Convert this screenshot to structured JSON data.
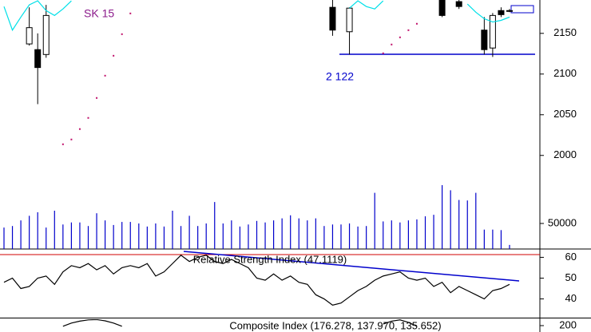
{
  "chart_data": [
    {
      "type": "candlestick",
      "open": [
        null,
        null,
        null,
        2137,
        2130,
        2124,
        null,
        null,
        null,
        null,
        null,
        null,
        null,
        null,
        null,
        null,
        null,
        null,
        null,
        null,
        null,
        null,
        null,
        null,
        null,
        null,
        null,
        null,
        null,
        null,
        null,
        null,
        null,
        null,
        null,
        null,
        null,
        null,
        null,
        2182,
        null,
        2152,
        null,
        null,
        null,
        null,
        null,
        null,
        null,
        null,
        null,
        null,
        2191,
        null,
        2189,
        null,
        null,
        2154,
        2132,
        2178,
        2178
      ],
      "high": [
        null,
        null,
        null,
        2182,
        2150,
        2185,
        null,
        null,
        null,
        null,
        null,
        null,
        null,
        null,
        null,
        null,
        null,
        null,
        null,
        null,
        null,
        null,
        null,
        null,
        null,
        null,
        null,
        null,
        null,
        null,
        null,
        null,
        null,
        null,
        null,
        null,
        null,
        null,
        null,
        2195,
        null,
        2182,
        null,
        null,
        null,
        null,
        null,
        null,
        null,
        null,
        null,
        null,
        2195,
        null,
        2195,
        null,
        null,
        2170,
        2175,
        2182,
        2180
      ],
      "low": [
        null,
        null,
        null,
        2135,
        2063,
        2120,
        null,
        null,
        null,
        null,
        null,
        null,
        null,
        null,
        null,
        null,
        null,
        null,
        null,
        null,
        null,
        null,
        null,
        null,
        null,
        null,
        null,
        null,
        null,
        null,
        null,
        null,
        null,
        null,
        null,
        null,
        null,
        null,
        null,
        2147,
        null,
        2124,
        null,
        null,
        null,
        null,
        null,
        null,
        null,
        null,
        null,
        null,
        2170,
        null,
        2180,
        null,
        null,
        2124,
        2121,
        2170,
        2176
      ],
      "close": [
        null,
        null,
        null,
        2157,
        2108,
        2172,
        null,
        null,
        null,
        null,
        null,
        null,
        null,
        null,
        null,
        null,
        null,
        null,
        null,
        null,
        null,
        null,
        null,
        null,
        null,
        null,
        null,
        null,
        null,
        null,
        null,
        null,
        null,
        null,
        null,
        null,
        null,
        null,
        null,
        2154,
        null,
        2181,
        null,
        null,
        null,
        null,
        null,
        null,
        null,
        null,
        null,
        null,
        2172,
        null,
        2183,
        null,
        null,
        2130,
        2172,
        2173,
        2177
      ],
      "series": [
        {
          "style": "line",
          "color": "#00e0e8",
          "values": [
            2183,
            2154,
            2170,
            2185,
            2190,
            2178,
            2172,
            2180,
            2190,
            null,
            null,
            null,
            null,
            null,
            null,
            null,
            null,
            null,
            null,
            null,
            null,
            null,
            null,
            null,
            null,
            null,
            null,
            null,
            null,
            null,
            null,
            null,
            null,
            null,
            null,
            null,
            null,
            null,
            null,
            null,
            null,
            2181,
            2190,
            2183,
            2180,
            2190,
            null,
            null,
            null,
            null,
            null,
            null,
            null,
            null,
            null,
            2186,
            2176,
            2168,
            2164,
            2166,
            2170
          ]
        },
        {
          "style": "dots",
          "color": "#c0106a",
          "values": [
            null,
            null,
            null,
            null,
            null,
            null,
            null,
            2013.7,
            2019.6,
            2032.4,
            2046.1,
            2070.6,
            2098,
            2122.5,
            2149,
            2174.5,
            null,
            null,
            null,
            null,
            null,
            null,
            null,
            null,
            null,
            null,
            null,
            null,
            null,
            null,
            null,
            null,
            null,
            null,
            null,
            null,
            null,
            null,
            null,
            null,
            null,
            null,
            null,
            null,
            null,
            2125.5,
            2136.3,
            2145.1,
            2153.9,
            2161.8,
            null,
            null,
            null,
            null,
            null,
            null,
            null,
            null,
            null,
            null,
            null
          ]
        }
      ],
      "annotations": [
        "SK 15",
        "2 122"
      ],
      "ylim": [
        1885,
        2191
      ],
      "yticks": [
        2000,
        2050,
        2100,
        2150
      ]
    },
    {
      "type": "bar",
      "color": "#0000cc",
      "values": [
        42000,
        45000,
        56000,
        65000,
        72000,
        42000,
        75000,
        48000,
        52000,
        52000,
        45000,
        70000,
        56000,
        47000,
        53000,
        53000,
        50000,
        44000,
        50000,
        44000,
        75000,
        45000,
        65000,
        45000,
        50000,
        92000,
        50000,
        56000,
        44000,
        48000,
        55000,
        52000,
        56000,
        60000,
        66000,
        60000,
        56000,
        60000,
        45000,
        48000,
        48000,
        50000,
        44000,
        45000,
        110000,
        54000,
        56000,
        52000,
        56000,
        58000,
        64000,
        67000,
        125000,
        115000,
        96000,
        95000,
        110000,
        38000,
        38000,
        37000,
        8000
      ],
      "ylim": [
        0,
        487500
      ],
      "yticks": [
        50000
      ]
    },
    {
      "type": "line",
      "title": "Relative Strength Index (47.1119)",
      "color": "#000000",
      "values": [
        48,
        50,
        45,
        46,
        50,
        51,
        47,
        53,
        56,
        55,
        57,
        54,
        56,
        52,
        55,
        56,
        55,
        57,
        51,
        53,
        57,
        61,
        58,
        60,
        61,
        58,
        57,
        59,
        57,
        55,
        50,
        49,
        52,
        49,
        51,
        48,
        47,
        42,
        40,
        37,
        38,
        41,
        44,
        46,
        49,
        51,
        52,
        53,
        50,
        49,
        50,
        46,
        48,
        43,
        46,
        44,
        42,
        40,
        44,
        45,
        47
      ],
      "ylim": [
        31,
        64
      ],
      "yticks": [
        60,
        50,
        40
      ]
    },
    {
      "type": "line",
      "title": "Composite Index (176.278, 137.970, 135.652)",
      "color": "#000000",
      "values": [
        null,
        null,
        null,
        null,
        null,
        null,
        null,
        198,
        208,
        214,
        218,
        219,
        215,
        208,
        198,
        null,
        null,
        null,
        null,
        null,
        null,
        null,
        null,
        null,
        null,
        null,
        null,
        null,
        null,
        null,
        null,
        null,
        null,
        null,
        null,
        null,
        null,
        null,
        null,
        null,
        null,
        null,
        null,
        null,
        null,
        205,
        214,
        218,
        210,
        198,
        null,
        null,
        null,
        null,
        null,
        null,
        null,
        null,
        null,
        null,
        null
      ],
      "ylim": [
        -30,
        220
      ],
      "yticks": [
        200
      ]
    }
  ]
}
